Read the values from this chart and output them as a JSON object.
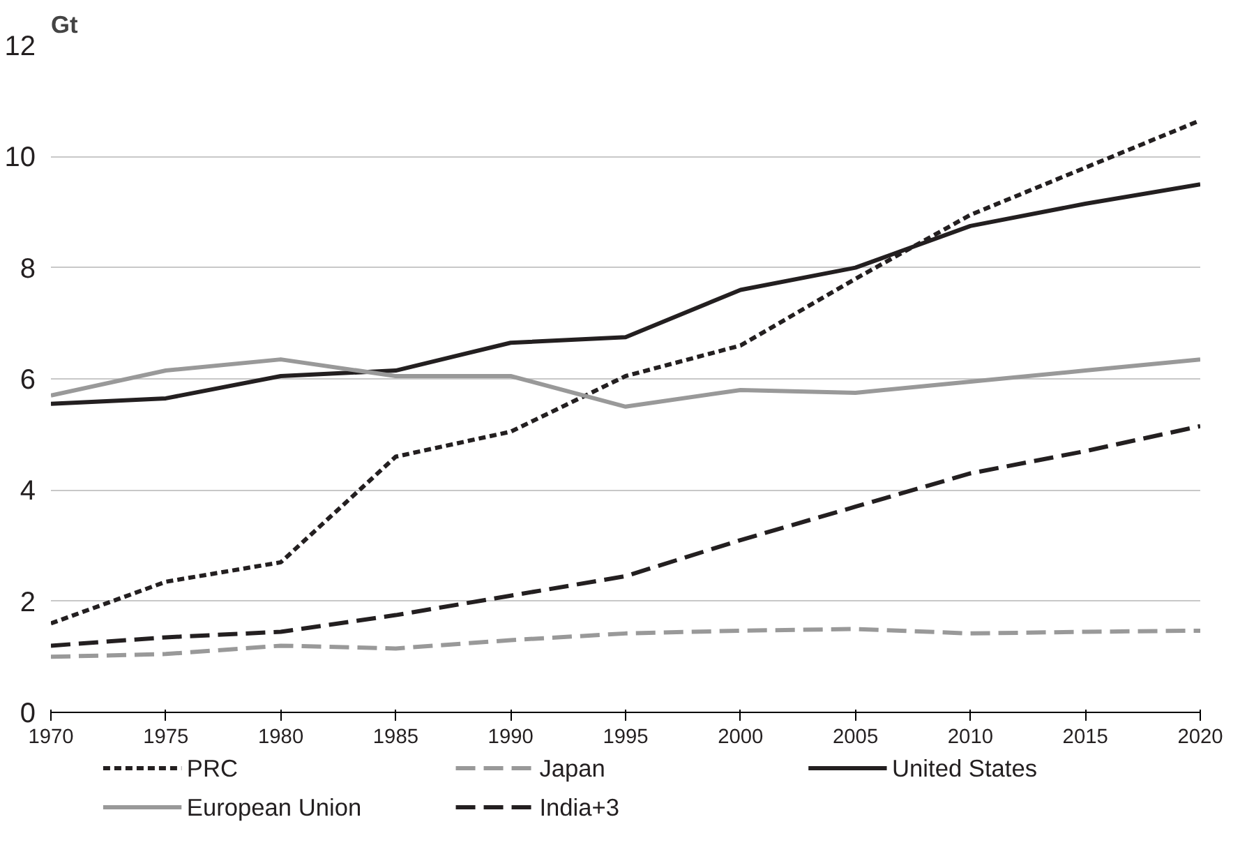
{
  "chart_data": {
    "type": "line",
    "ylabel": "Gt",
    "x": [
      1970,
      1975,
      1980,
      1985,
      1990,
      1995,
      2000,
      2005,
      2010,
      2015,
      2020
    ],
    "series": [
      {
        "name": "PRC",
        "color": "#231f20",
        "line_style": "dotted",
        "values": [
          1.6,
          2.35,
          2.7,
          4.6,
          5.05,
          6.05,
          6.6,
          7.8,
          8.95,
          9.8,
          10.65
        ]
      },
      {
        "name": "Japan",
        "color": "#999999",
        "line_style": "dashed",
        "values": [
          1.0,
          1.05,
          1.2,
          1.15,
          1.3,
          1.42,
          1.47,
          1.5,
          1.42,
          1.45,
          1.47
        ]
      },
      {
        "name": "United States",
        "color": "#231f20",
        "line_style": "solid",
        "values": [
          5.55,
          5.65,
          6.05,
          6.15,
          6.65,
          6.75,
          7.6,
          8.0,
          8.75,
          9.15,
          9.5
        ]
      },
      {
        "name": "European Union",
        "color": "#999999",
        "line_style": "solid",
        "values": [
          5.7,
          6.15,
          6.35,
          6.05,
          6.05,
          5.5,
          5.8,
          5.75,
          5.95,
          6.15,
          6.35
        ]
      },
      {
        "name": "India+3",
        "color": "#231f20",
        "line_style": "dashed",
        "values": [
          1.2,
          1.35,
          1.45,
          1.75,
          2.1,
          2.45,
          3.1,
          3.7,
          4.3,
          4.7,
          5.15
        ]
      }
    ],
    "xlim": [
      1970,
      2020
    ],
    "ylim": [
      0,
      12
    ],
    "xticks": [
      1970,
      1975,
      1980,
      1985,
      1990,
      1995,
      2000,
      2005,
      2010,
      2015,
      2020
    ],
    "yticks": [
      0,
      2,
      4,
      6,
      8,
      10,
      12
    ],
    "grid": "y",
    "legend": "bottom",
    "marker": "none"
  }
}
